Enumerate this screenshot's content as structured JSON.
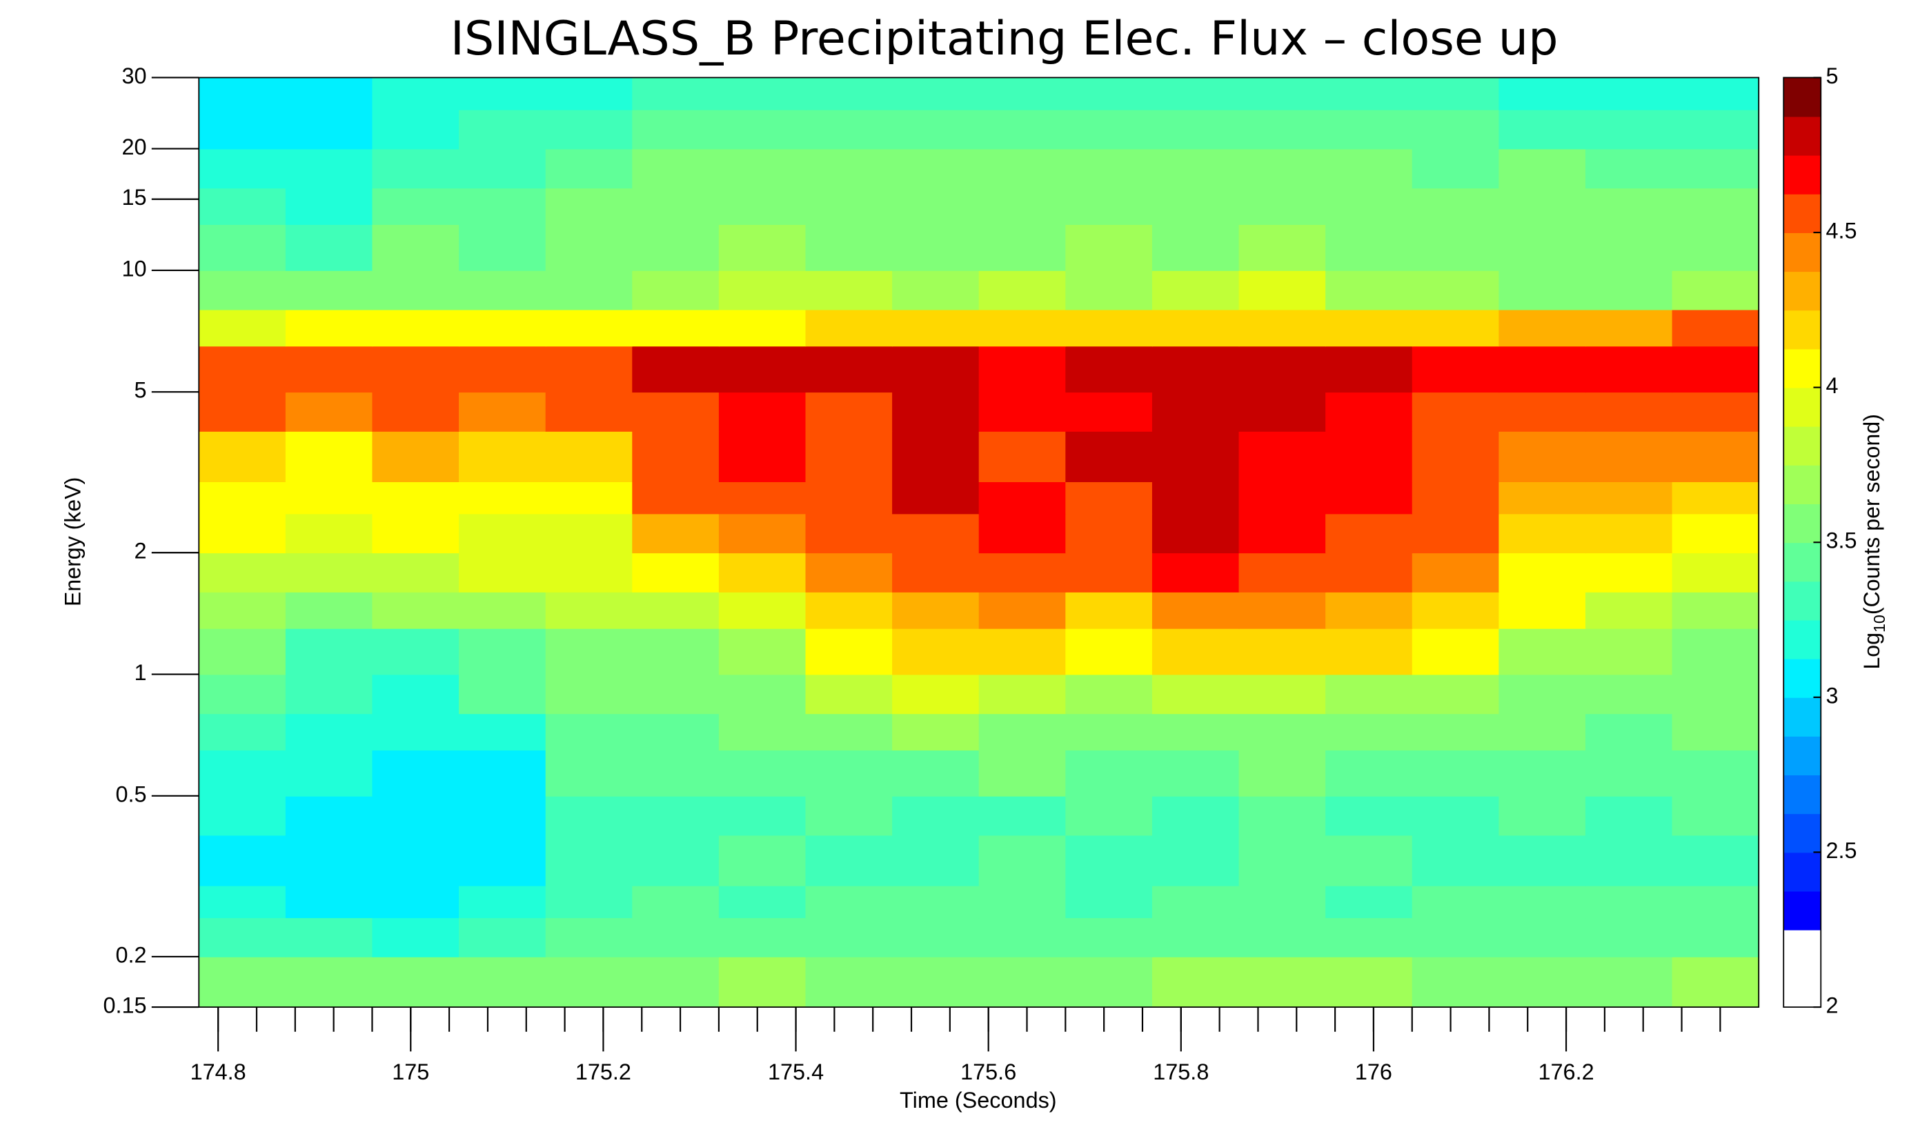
{
  "chart_data": {
    "type": "heatmap",
    "title": "ISINGLASS_B Precipitating Elec. Flux – close up",
    "x_label": "Time (Seconds)",
    "y_label": "Energy (keV)",
    "colorbar_label": {
      "prefix": "Log",
      "sub": "10",
      "suffix": "(Counts per second)"
    },
    "xlim": [
      174.78,
      176.4
    ],
    "ylim": [
      0.15,
      30
    ],
    "y_log": true,
    "xticks": [
      174.8,
      175,
      175.2,
      175.4,
      175.6,
      175.8,
      176,
      176.2
    ],
    "xminorticks": [
      174.8,
      174.84,
      174.88,
      174.92,
      174.96,
      175,
      175.04,
      175.08,
      175.12,
      175.16,
      175.2,
      175.24,
      175.28,
      175.32,
      175.36,
      175.4,
      175.44,
      175.48,
      175.52,
      175.56,
      175.6,
      175.64,
      175.68,
      175.72,
      175.76,
      175.8,
      175.84,
      175.88,
      175.92,
      175.96,
      176,
      176.04,
      176.08,
      176.12,
      176.16,
      176.2,
      176.24,
      176.28,
      176.32,
      176.36
    ],
    "yticks": [
      0.15,
      0.2,
      0.5,
      1,
      2,
      5,
      10,
      15,
      20,
      30
    ],
    "clim": [
      2,
      5
    ],
    "cticks": [
      2,
      2.5,
      3,
      3.5,
      4,
      4.5,
      5
    ],
    "colorscale": [
      "#ffffff",
      "#ffffff",
      "#0000ff",
      "#0028ff",
      "#0050ff",
      "#0078ff",
      "#00a0ff",
      "#00c8ff",
      "#00f0ff",
      "#20ffd8",
      "#40ffb8",
      "#60ff98",
      "#80ff78",
      "#a0ff58",
      "#c0ff38",
      "#e0ff18",
      "#ffff00",
      "#ffd800",
      "#ffb000",
      "#ff8800",
      "#ff5000",
      "#ff0000",
      "#c80000",
      "#800000"
    ],
    "x_edges": [
      174.78,
      174.87,
      174.96,
      175.05,
      175.14,
      175.23,
      175.32,
      175.41,
      175.5,
      175.59,
      175.68,
      175.77,
      175.86,
      175.95,
      176.04,
      176.13,
      176.22,
      176.31,
      176.4
    ],
    "y_edges": [
      0.15,
      0.2,
      0.25,
      0.3,
      0.4,
      0.5,
      0.65,
      0.8,
      1,
      1.3,
      1.6,
      2,
      2.5,
      3,
      4,
      5,
      6.5,
      8,
      10,
      13,
      16,
      20,
      25,
      30
    ],
    "z": [
      [
        3.6,
        3.5,
        3.6,
        3.6,
        3.6,
        3.6,
        3.7,
        3.6,
        3.6,
        3.6,
        3.6,
        3.7,
        3.7,
        3.7,
        3.6,
        3.6,
        3.6,
        3.7
      ],
      [
        3.3,
        3.3,
        3.2,
        3.3,
        3.4,
        3.4,
        3.4,
        3.4,
        3.4,
        3.4,
        3.4,
        3.4,
        3.4,
        3.4,
        3.4,
        3.4,
        3.4,
        3.4
      ],
      [
        3.2,
        3.1,
        3.1,
        3.2,
        3.3,
        3.4,
        3.3,
        3.4,
        3.4,
        3.4,
        3.3,
        3.4,
        3.4,
        3.3,
        3.4,
        3.4,
        3.4,
        3.4
      ],
      [
        3.1,
        3.0,
        3.0,
        3.1,
        3.3,
        3.3,
        3.4,
        3.3,
        3.3,
        3.4,
        3.3,
        3.3,
        3.4,
        3.4,
        3.3,
        3.3,
        3.3,
        3.3
      ],
      [
        3.2,
        3.1,
        3.1,
        3.0,
        3.3,
        3.3,
        3.3,
        3.4,
        3.3,
        3.3,
        3.4,
        3.3,
        3.4,
        3.3,
        3.3,
        3.4,
        3.3,
        3.4
      ],
      [
        3.2,
        3.2,
        3.1,
        3.1,
        3.4,
        3.4,
        3.4,
        3.4,
        3.4,
        3.5,
        3.4,
        3.4,
        3.5,
        3.4,
        3.4,
        3.4,
        3.4,
        3.4
      ],
      [
        3.3,
        3.2,
        3.2,
        3.2,
        3.4,
        3.4,
        3.5,
        3.6,
        3.7,
        3.6,
        3.5,
        3.6,
        3.6,
        3.5,
        3.5,
        3.5,
        3.4,
        3.5
      ],
      [
        3.4,
        3.3,
        3.2,
        3.4,
        3.5,
        3.5,
        3.6,
        3.8,
        3.9,
        3.8,
        3.7,
        3.8,
        3.8,
        3.7,
        3.7,
        3.6,
        3.6,
        3.6
      ],
      [
        3.5,
        3.3,
        3.3,
        3.4,
        3.6,
        3.6,
        3.7,
        4.1,
        4.2,
        4.2,
        4.0,
        4.2,
        4.2,
        4.2,
        4.1,
        3.7,
        3.7,
        3.6
      ],
      [
        3.7,
        3.6,
        3.7,
        3.7,
        3.8,
        3.8,
        3.9,
        4.2,
        4.3,
        4.4,
        4.2,
        4.4,
        4.4,
        4.3,
        4.2,
        4.0,
        3.8,
        3.7
      ],
      [
        3.8,
        3.8,
        3.8,
        3.9,
        3.9,
        4.0,
        4.2,
        4.4,
        4.5,
        4.6,
        4.5,
        4.7,
        4.6,
        4.5,
        4.4,
        4.1,
        4.0,
        3.9
      ],
      [
        4.0,
        3.9,
        4.0,
        3.9,
        3.9,
        4.3,
        4.4,
        4.5,
        4.6,
        4.7,
        4.6,
        4.75,
        4.7,
        4.6,
        4.5,
        4.2,
        4.2,
        4.1
      ],
      [
        4.1,
        4.0,
        4.1,
        4.1,
        4.1,
        4.5,
        4.6,
        4.6,
        4.8,
        4.7,
        4.6,
        4.75,
        4.7,
        4.7,
        4.5,
        4.3,
        4.3,
        4.2
      ],
      [
        4.2,
        4.1,
        4.3,
        4.2,
        4.2,
        4.5,
        4.7,
        4.6,
        4.8,
        4.6,
        4.75,
        4.75,
        4.7,
        4.7,
        4.5,
        4.4,
        4.4,
        4.4
      ],
      [
        4.5,
        4.4,
        4.5,
        4.4,
        4.5,
        4.6,
        4.7,
        4.6,
        4.8,
        4.7,
        4.7,
        4.8,
        4.75,
        4.7,
        4.6,
        4.5,
        4.5,
        4.5
      ],
      [
        4.6,
        4.6,
        4.6,
        4.6,
        4.6,
        4.75,
        4.75,
        4.75,
        4.75,
        4.7,
        4.75,
        4.8,
        4.8,
        4.75,
        4.7,
        4.7,
        4.7,
        4.7
      ],
      [
        3.9,
        4.0,
        4.0,
        4.0,
        4.0,
        4.1,
        4.1,
        4.2,
        4.2,
        4.2,
        4.2,
        4.2,
        4.2,
        4.2,
        4.2,
        4.3,
        4.3,
        4.5
      ],
      [
        3.6,
        3.5,
        3.6,
        3.6,
        3.6,
        3.7,
        3.8,
        3.8,
        3.7,
        3.8,
        3.7,
        3.8,
        3.9,
        3.7,
        3.7,
        3.6,
        3.6,
        3.7
      ],
      [
        3.4,
        3.3,
        3.5,
        3.4,
        3.5,
        3.6,
        3.7,
        3.6,
        3.6,
        3.6,
        3.7,
        3.6,
        3.7,
        3.6,
        3.6,
        3.6,
        3.6,
        3.6
      ],
      [
        3.3,
        3.2,
        3.4,
        3.4,
        3.5,
        3.5,
        3.6,
        3.6,
        3.6,
        3.5,
        3.6,
        3.6,
        3.6,
        3.5,
        3.6,
        3.5,
        3.5,
        3.5
      ],
      [
        3.2,
        3.2,
        3.3,
        3.3,
        3.4,
        3.5,
        3.5,
        3.5,
        3.5,
        3.5,
        3.5,
        3.5,
        3.5,
        3.5,
        3.4,
        3.5,
        3.4,
        3.4
      ],
      [
        3.1,
        3.1,
        3.2,
        3.3,
        3.3,
        3.4,
        3.4,
        3.4,
        3.4,
        3.4,
        3.4,
        3.4,
        3.4,
        3.4,
        3.4,
        3.3,
        3.3,
        3.3
      ],
      [
        3.1,
        3.0,
        3.2,
        3.2,
        3.2,
        3.3,
        3.3,
        3.3,
        3.3,
        3.3,
        3.3,
        3.3,
        3.3,
        3.3,
        3.3,
        3.2,
        3.2,
        3.2
      ]
    ]
  }
}
